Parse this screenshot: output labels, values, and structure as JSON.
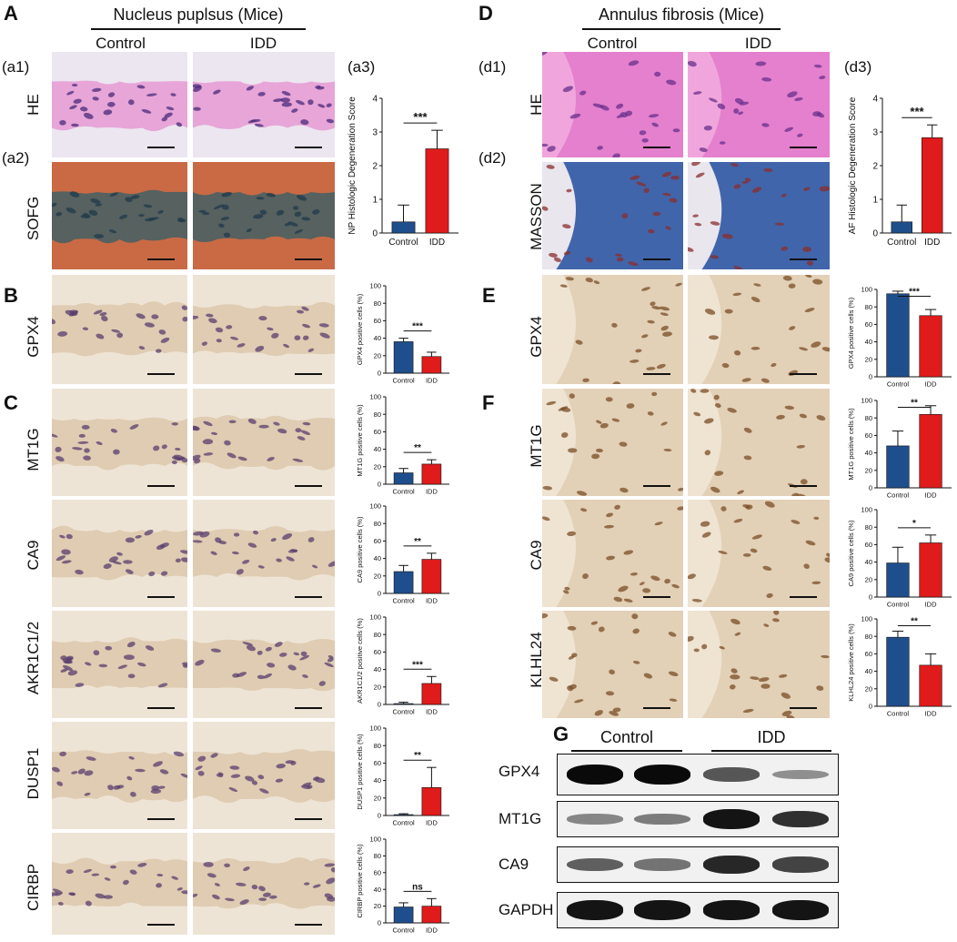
{
  "panels": {
    "A": "A",
    "B": "B",
    "C": "C",
    "D": "D",
    "E": "E",
    "F": "F",
    "G": "G"
  },
  "np": {
    "title": "Nucleus puplsus (Mice)",
    "col_control": "Control",
    "col_idd": "IDD",
    "a1": "(a1)",
    "a2": "(a2)",
    "a3": "(a3)",
    "rows": [
      "HE",
      "SOFG",
      "GPX4",
      "MT1G",
      "CA9",
      "AKR1C1/2",
      "DUSP1",
      "CIRBP"
    ]
  },
  "af": {
    "title": "Annulus fibrosis (Mice)",
    "col_control": "Control",
    "col_idd": "IDD",
    "d1": "(d1)",
    "d2": "(d2)",
    "d3": "(d3)",
    "rows": [
      "HE",
      "MASSON",
      "GPX4",
      "MT1G",
      "CA9",
      "KLHL24"
    ]
  },
  "colors": {
    "control": "#1f4e8c",
    "idd": "#e01b1b"
  },
  "stains": {
    "he": "#e58fd0",
    "he_bg": "#ece6f0",
    "sofg": "#2f5f6a",
    "sofg_bg": "#c96a45",
    "ihc_bg": "#eee4d6",
    "ihc_fiber": "#d9c4a6",
    "masson": "#2f56a3",
    "masson_bg": "#e9e6ee",
    "nucleus": "#5a3e6e",
    "nucleus_brown": "#7a4e25"
  },
  "chart_data": [
    {
      "id": "a3",
      "type": "bar",
      "categories": [
        "Control",
        "IDD"
      ],
      "values": [
        0.33,
        2.5
      ],
      "errors": [
        0.5,
        0.55
      ],
      "ylabel": "NP Histologic Degeneration Score",
      "ylim": [
        0,
        4
      ],
      "yticks": [
        0,
        1,
        2,
        3,
        4
      ],
      "sig": "***"
    },
    {
      "id": "b",
      "type": "bar",
      "categories": [
        "Control",
        "IDD"
      ],
      "values": [
        36,
        19
      ],
      "errors": [
        4,
        5
      ],
      "ylabel": "GPX4 positive cells (%)",
      "ylim": [
        0,
        100
      ],
      "yticks": [
        0,
        20,
        40,
        60,
        80,
        100
      ],
      "sig": "***"
    },
    {
      "id": "c1",
      "type": "bar",
      "categories": [
        "Control",
        "IDD"
      ],
      "values": [
        13,
        23
      ],
      "errors": [
        5,
        5
      ],
      "ylabel": "MT1G positive cells (%)",
      "ylim": [
        0,
        100
      ],
      "yticks": [
        0,
        20,
        40,
        60,
        80,
        100
      ],
      "sig": "**"
    },
    {
      "id": "c2",
      "type": "bar",
      "categories": [
        "Control",
        "IDD"
      ],
      "values": [
        25,
        39
      ],
      "errors": [
        7,
        7
      ],
      "ylabel": "CA9 positive cells (%)",
      "ylim": [
        0,
        100
      ],
      "yticks": [
        0,
        20,
        40,
        60,
        80,
        100
      ],
      "sig": "**"
    },
    {
      "id": "c3",
      "type": "bar",
      "categories": [
        "Control",
        "IDD"
      ],
      "values": [
        1,
        24
      ],
      "errors": [
        1.5,
        8
      ],
      "ylabel": "AKR1C1/2 positive cells (%)",
      "ylim": [
        0,
        100
      ],
      "yticks": [
        0,
        20,
        40,
        60,
        80,
        100
      ],
      "sig": "***"
    },
    {
      "id": "c4",
      "type": "bar",
      "categories": [
        "Control",
        "IDD"
      ],
      "values": [
        1,
        32
      ],
      "errors": [
        1,
        23
      ],
      "ylabel": "DUSP1 positive cells (%)",
      "ylim": [
        0,
        100
      ],
      "yticks": [
        0,
        20,
        40,
        60,
        80,
        100
      ],
      "sig": "**"
    },
    {
      "id": "c5",
      "type": "bar",
      "categories": [
        "Control",
        "IDD"
      ],
      "values": [
        19,
        20
      ],
      "errors": [
        5,
        9
      ],
      "ylabel": "CIRBP positive cells (%)",
      "ylim": [
        0,
        100
      ],
      "yticks": [
        0,
        20,
        40,
        60,
        80,
        100
      ],
      "sig": "ns"
    },
    {
      "id": "d3",
      "type": "bar",
      "categories": [
        "Control",
        "IDD"
      ],
      "values": [
        0.33,
        2.83
      ],
      "errors": [
        0.5,
        0.38
      ],
      "ylabel": "AF Histologic Degeneration Score",
      "ylim": [
        0,
        4
      ],
      "yticks": [
        0,
        1,
        2,
        3,
        4
      ],
      "sig": "***"
    },
    {
      "id": "e",
      "type": "bar",
      "categories": [
        "Control",
        "IDD"
      ],
      "values": [
        95,
        70
      ],
      "errors": [
        3,
        7
      ],
      "ylabel": "GPX4 positive cells (%)",
      "ylim": [
        0,
        100
      ],
      "yticks": [
        0,
        20,
        40,
        60,
        80,
        100
      ],
      "sig": "***"
    },
    {
      "id": "f1",
      "type": "bar",
      "categories": [
        "Control",
        "IDD"
      ],
      "values": [
        48,
        84
      ],
      "errors": [
        17,
        10
      ],
      "ylabel": "MT1G positive cells (%)",
      "ylim": [
        0,
        100
      ],
      "yticks": [
        0,
        20,
        40,
        60,
        80,
        100
      ],
      "sig": "**"
    },
    {
      "id": "f2",
      "type": "bar",
      "categories": [
        "Control",
        "IDD"
      ],
      "values": [
        39,
        62
      ],
      "errors": [
        18,
        9
      ],
      "ylabel": "CA9 positive cells (%)",
      "ylim": [
        0,
        100
      ],
      "yticks": [
        0,
        20,
        40,
        60,
        80,
        100
      ],
      "sig": "*"
    },
    {
      "id": "f3",
      "type": "bar",
      "categories": [
        "Control",
        "IDD"
      ],
      "values": [
        79,
        47
      ],
      "errors": [
        7,
        13
      ],
      "ylabel": "KLHL24 positive cells (%)",
      "ylim": [
        0,
        100
      ],
      "yticks": [
        0,
        20,
        40,
        60,
        80,
        100
      ],
      "sig": "**"
    }
  ],
  "western": {
    "title_control": "Control",
    "title_idd": "IDD",
    "rows": [
      {
        "label": "GPX4",
        "intensity": [
          1.0,
          1.0,
          0.6,
          0.3
        ]
      },
      {
        "label": "MT1G",
        "intensity": [
          0.35,
          0.4,
          0.95,
          0.8
        ]
      },
      {
        "label": "CA9",
        "intensity": [
          0.55,
          0.45,
          0.85,
          0.7
        ]
      },
      {
        "label": "GAPDH",
        "intensity": [
          0.95,
          0.95,
          0.95,
          0.95
        ]
      }
    ]
  }
}
